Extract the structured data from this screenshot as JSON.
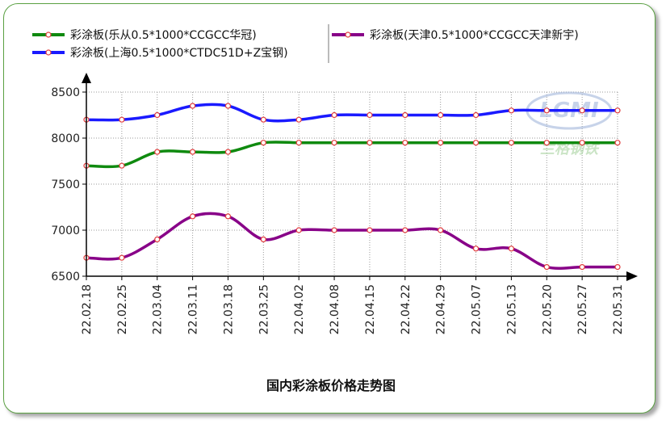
{
  "chart_data": {
    "type": "line",
    "title": "国内彩涂板价格走势图",
    "xlabel": "",
    "ylabel": "",
    "categories": [
      "22.02.18",
      "22.02.25",
      "22.03.04",
      "22.03.11",
      "22.03.18",
      "22.03.25",
      "22.04.02",
      "22.04.08",
      "22.04.15",
      "22.04.22",
      "22.04.29",
      "22.05.07",
      "22.05.13",
      "22.05.20",
      "22.05.27",
      "22.05.31"
    ],
    "ylim": [
      6500,
      8500
    ],
    "yticks": [
      6500,
      7000,
      7500,
      8000,
      8500
    ],
    "grid": true,
    "legend_position": "top",
    "series": [
      {
        "name": "彩涂板(乐从0.5*1000*CCGCC华冠)",
        "color": "#0f8a0f",
        "values": [
          7700,
          7700,
          7850,
          7850,
          7850,
          7950,
          7950,
          7950,
          7950,
          7950,
          7950,
          7950,
          7950,
          7950,
          7950,
          7950
        ]
      },
      {
        "name": "彩涂板(上海0.5*1000*CTDC51D+Z宝钢)",
        "color": "#1a1aff",
        "values": [
          8200,
          8200,
          8250,
          8350,
          8350,
          8200,
          8200,
          8250,
          8250,
          8250,
          8250,
          8250,
          8300,
          8300,
          8300,
          8300
        ]
      },
      {
        "name": "彩涂板(天津0.5*1000*CCGCC天津新宇)",
        "color": "#880088",
        "values": [
          6700,
          6700,
          6900,
          7150,
          7150,
          6900,
          7000,
          7000,
          7000,
          7000,
          7000,
          6800,
          6800,
          6600,
          6600,
          6600
        ]
      }
    ]
  },
  "watermark": {
    "logo_text": "LGMI",
    "chinese_text": "兰格钢铁"
  }
}
